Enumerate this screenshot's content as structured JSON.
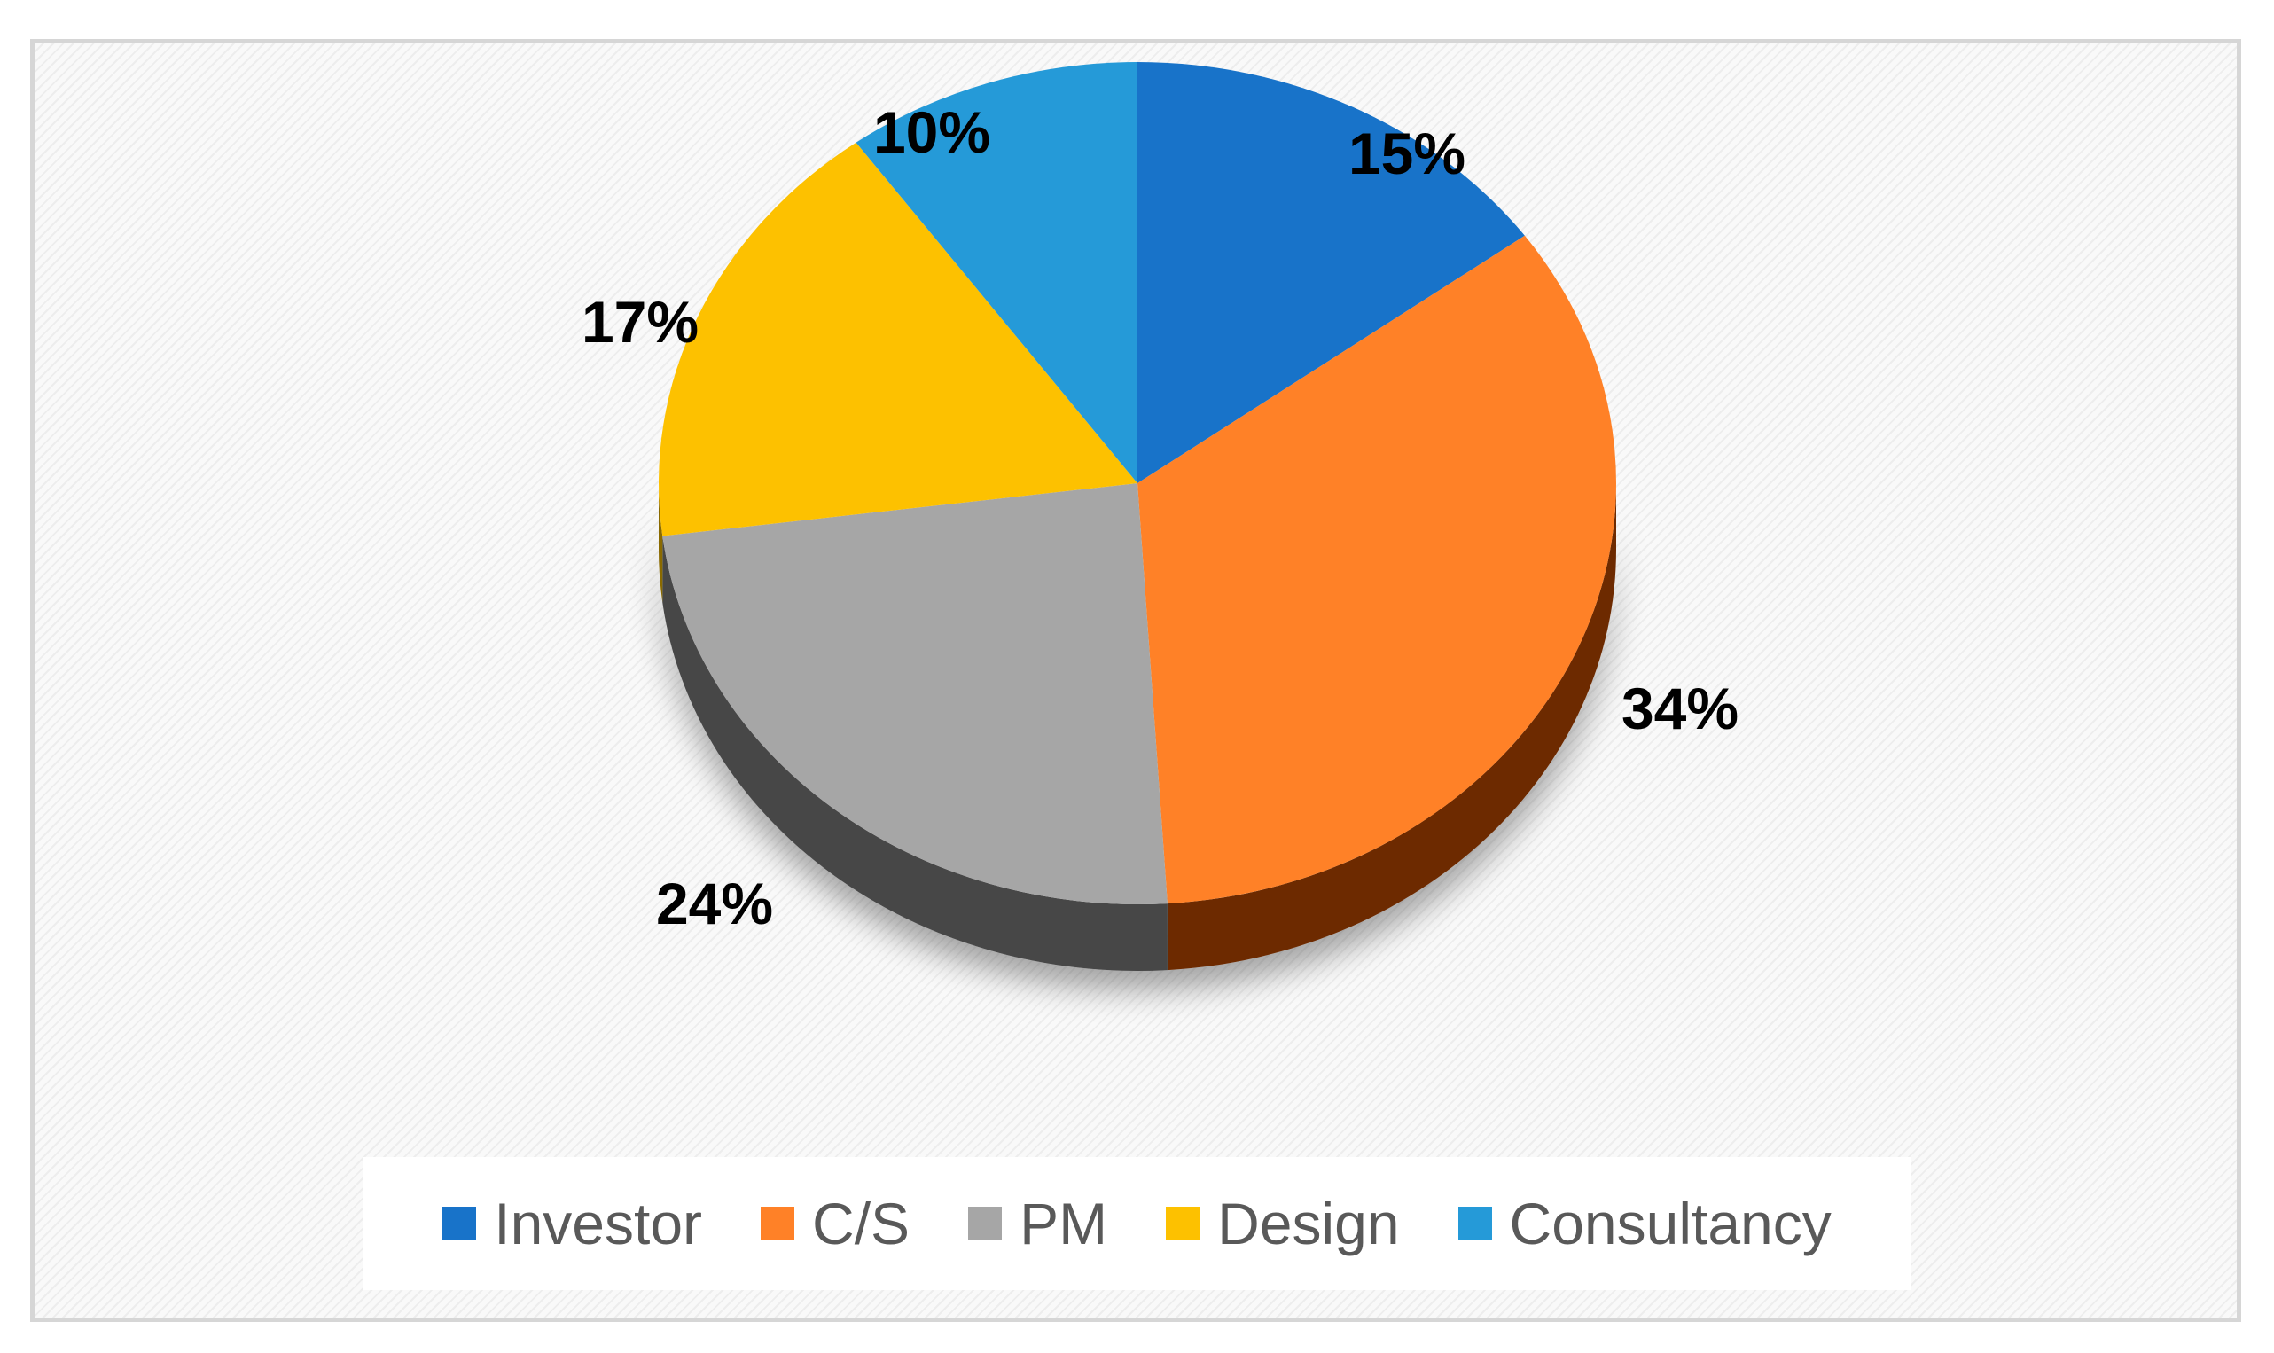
{
  "chart_data": {
    "type": "pie",
    "title": "",
    "categories": [
      "Investor",
      "C/S",
      "PM",
      "Design",
      "Consultancy"
    ],
    "values": [
      15,
      34,
      24,
      17,
      10
    ],
    "labels": [
      "15%",
      "34%",
      "24%",
      "17%",
      "10%"
    ],
    "colors": {
      "Investor": "#1873c9",
      "C/S": "#ff8127",
      "PM": "#a6a6a6",
      "Design": "#fdc100",
      "Consultancy": "#259ad8"
    },
    "side_colors": {
      "Investor": "#0d3f70",
      "C/S": "#6d2b05",
      "PM": "#464646",
      "Design": "#8a6a00",
      "Consultancy": "#135475"
    },
    "style": "3d-tilted",
    "legend": {
      "position": "bottom"
    }
  }
}
